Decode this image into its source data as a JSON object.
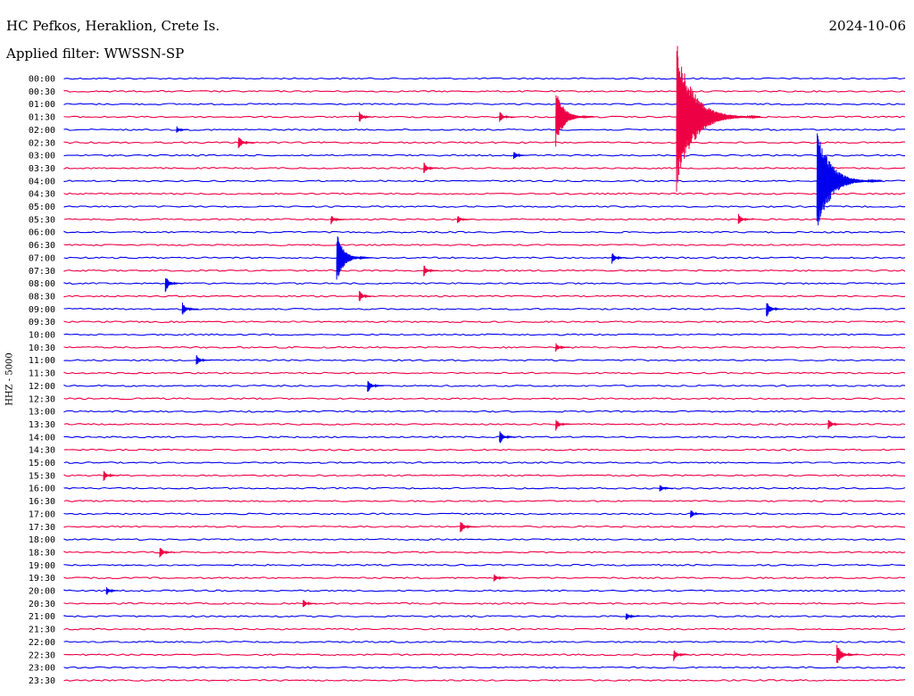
{
  "station": "HC Pefkos, Heraklion, Crete Is.",
  "date": "2024-10-06",
  "filter_label": "Applied filter: WWSSN-SP",
  "channel_label": "HHZ - 5000",
  "colors": {
    "odd_trace": "#0000ee",
    "even_trace": "#ee0044"
  },
  "chart_data": {
    "type": "line",
    "title": "HC Pefkos, Heraklion, Crete Is.",
    "subtitle": "Applied filter: WWSSN-SP",
    "ylabel": "HHZ - 5000",
    "xlabel": "",
    "grid": false,
    "legend": "none",
    "row_labels": [
      "00:00",
      "00:30",
      "01:00",
      "01:30",
      "02:00",
      "02:30",
      "03:00",
      "03:30",
      "04:00",
      "04:30",
      "05:00",
      "05:30",
      "06:00",
      "06:30",
      "07:00",
      "07:30",
      "08:00",
      "08:30",
      "09:00",
      "09:30",
      "10:00",
      "10:30",
      "11:00",
      "11:30",
      "12:00",
      "12:30",
      "13:00",
      "13:30",
      "14:00",
      "14:30",
      "15:00",
      "15:30",
      "16:00",
      "16:30",
      "17:00",
      "17:30",
      "18:00",
      "18:30",
      "19:00",
      "19:30",
      "20:00",
      "20:30",
      "21:00",
      "21:30",
      "22:00",
      "22:30",
      "23:00",
      "23:30"
    ],
    "events": [
      {
        "row": "01:30",
        "minute": 10.5,
        "amp": 0.5
      },
      {
        "row": "01:30",
        "minute": 15.5,
        "amp": 0.5
      },
      {
        "row": "01:30",
        "minute": 17.5,
        "amp": 2.4
      },
      {
        "row": "01:30",
        "minute": 21.8,
        "amp": 6.0
      },
      {
        "row": "02:00",
        "minute": 4.0,
        "amp": 0.3
      },
      {
        "row": "02:30",
        "minute": 6.2,
        "amp": 0.6
      },
      {
        "row": "03:00",
        "minute": 16.0,
        "amp": 0.4
      },
      {
        "row": "03:30",
        "minute": 12.8,
        "amp": 0.5
      },
      {
        "row": "04:00",
        "minute": 26.8,
        "amp": 4.5
      },
      {
        "row": "05:30",
        "minute": 9.5,
        "amp": 0.4
      },
      {
        "row": "05:30",
        "minute": 14.0,
        "amp": 0.4
      },
      {
        "row": "05:30",
        "minute": 24.0,
        "amp": 0.5
      },
      {
        "row": "07:00",
        "minute": 9.7,
        "amp": 2.1
      },
      {
        "row": "07:00",
        "minute": 19.5,
        "amp": 0.5
      },
      {
        "row": "07:30",
        "minute": 12.8,
        "amp": 0.5
      },
      {
        "row": "08:00",
        "minute": 3.6,
        "amp": 0.7
      },
      {
        "row": "08:30",
        "minute": 10.5,
        "amp": 0.5
      },
      {
        "row": "09:00",
        "minute": 4.2,
        "amp": 0.6
      },
      {
        "row": "09:00",
        "minute": 25.0,
        "amp": 0.7
      },
      {
        "row": "10:30",
        "minute": 17.5,
        "amp": 0.4
      },
      {
        "row": "11:00",
        "minute": 4.7,
        "amp": 0.5
      },
      {
        "row": "12:00",
        "minute": 10.8,
        "amp": 0.6
      },
      {
        "row": "13:30",
        "minute": 17.5,
        "amp": 0.5
      },
      {
        "row": "13:30",
        "minute": 27.2,
        "amp": 0.5
      },
      {
        "row": "14:00",
        "minute": 15.5,
        "amp": 0.6
      },
      {
        "row": "15:30",
        "minute": 1.4,
        "amp": 0.5
      },
      {
        "row": "16:00",
        "minute": 21.2,
        "amp": 0.4
      },
      {
        "row": "17:00",
        "minute": 22.3,
        "amp": 0.4
      },
      {
        "row": "17:30",
        "minute": 14.1,
        "amp": 0.6
      },
      {
        "row": "18:30",
        "minute": 3.4,
        "amp": 0.5
      },
      {
        "row": "19:30",
        "minute": 15.3,
        "amp": 0.4
      },
      {
        "row": "20:00",
        "minute": 1.5,
        "amp": 0.4
      },
      {
        "row": "20:30",
        "minute": 8.5,
        "amp": 0.4
      },
      {
        "row": "21:00",
        "minute": 20.0,
        "amp": 0.4
      },
      {
        "row": "22:30",
        "minute": 21.7,
        "amp": 0.5
      },
      {
        "row": "22:30",
        "minute": 27.5,
        "amp": 1.0
      }
    ]
  }
}
